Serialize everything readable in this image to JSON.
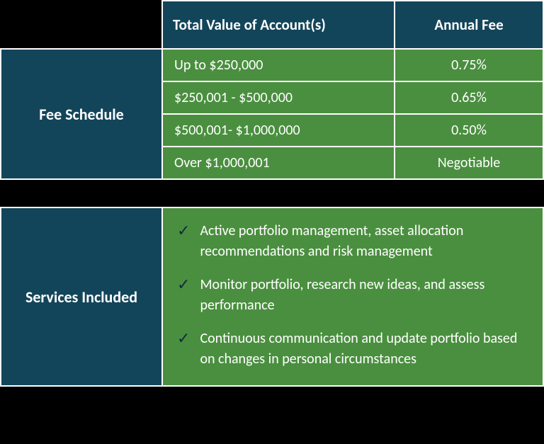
{
  "colors": {
    "header_bg": "#13455a",
    "cell_bg": "#4a8f3f",
    "border": "#ffffff",
    "page_bg": "#000000",
    "text": "#ffffff",
    "check": "#0d2e3d"
  },
  "header": {
    "col_value": "Total Value of Account(s)",
    "col_fee": "Annual Fee"
  },
  "fee_schedule": {
    "label": "Fee Schedule",
    "rows": [
      {
        "range": "Up to $250,000",
        "fee": "0.75%"
      },
      {
        "range": "$250,001 - $500,000",
        "fee": "0.65%"
      },
      {
        "range": "$500,001- $1,000,000",
        "fee": "0.50%"
      },
      {
        "range": "Over $1,000,001",
        "fee": "Negotiable"
      }
    ]
  },
  "services": {
    "label": "Services Included",
    "items": [
      "Active portfolio management, asset allocation recommendations and risk management",
      "Monitor portfolio, research new ideas, and assess performance",
      "Continuous communication and update portfolio based on changes in personal circumstances"
    ]
  }
}
